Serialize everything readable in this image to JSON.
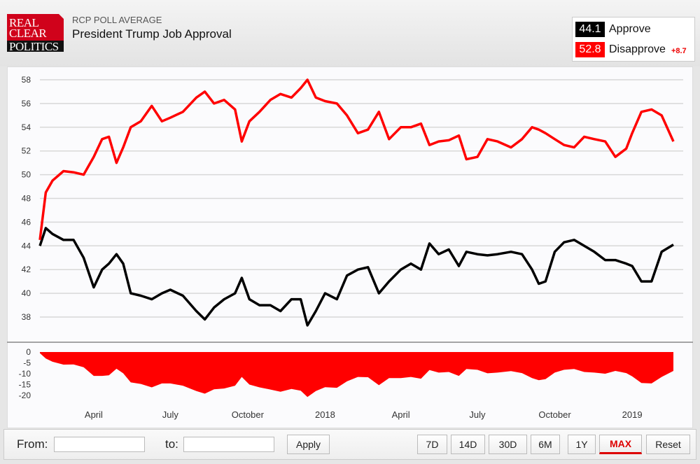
{
  "header": {
    "logo_text": "REAL CLEAR POLITICS",
    "subtitle": "RCP POLL AVERAGE",
    "title": "President Trump Job Approval"
  },
  "legend": {
    "approve": {
      "value": "44.1",
      "label": "Approve",
      "color": "#000000"
    },
    "disapprove": {
      "value": "52.8",
      "label": "Disapprove",
      "color": "#ff0000"
    },
    "spread": "+8.7"
  },
  "footer": {
    "from_label": "From:",
    "to_label": "to:",
    "from_value": "",
    "to_value": "",
    "apply": "Apply",
    "ranges": [
      "7D",
      "14D",
      "30D",
      "6M",
      "1Y",
      "MAX"
    ],
    "active_range": "MAX",
    "reset": "Reset"
  },
  "chart_data": {
    "type": "line",
    "ylim": [
      37,
      58.5
    ],
    "yticks": [
      38,
      40,
      42,
      44,
      46,
      48,
      50,
      52,
      54,
      56,
      58
    ],
    "spread_ylim": [
      -21,
      0
    ],
    "spread_ticks": [
      0,
      -5,
      -10,
      -15,
      -20
    ],
    "grid": true,
    "xticks": [
      {
        "date": "2017-04-01",
        "label": "April"
      },
      {
        "date": "2017-07-01",
        "label": "July"
      },
      {
        "date": "2017-10-01",
        "label": "October"
      },
      {
        "date": "2018-01-01",
        "label": "2018"
      },
      {
        "date": "2018-04-01",
        "label": "April"
      },
      {
        "date": "2018-07-01",
        "label": "July"
      },
      {
        "date": "2018-10-01",
        "label": "October"
      },
      {
        "date": "2019-01-01",
        "label": "2019"
      }
    ],
    "x": [
      "2017-01-27",
      "2017-02-03",
      "2017-02-11",
      "2017-02-24",
      "2017-03-08",
      "2017-03-20",
      "2017-04-01",
      "2017-04-11",
      "2017-04-19",
      "2017-04-28",
      "2017-05-06",
      "2017-05-15",
      "2017-05-27",
      "2017-06-09",
      "2017-06-21",
      "2017-07-01",
      "2017-07-16",
      "2017-08-01",
      "2017-08-11",
      "2017-08-22",
      "2017-09-03",
      "2017-09-16",
      "2017-09-24",
      "2017-10-03",
      "2017-10-15",
      "2017-10-28",
      "2017-11-09",
      "2017-11-22",
      "2017-12-03",
      "2017-12-11",
      "2017-12-21",
      "2018-01-01",
      "2018-01-15",
      "2018-01-27",
      "2018-02-09",
      "2018-02-21",
      "2018-03-06",
      "2018-03-18",
      "2018-04-01",
      "2018-04-13",
      "2018-04-25",
      "2018-05-05",
      "2018-05-16",
      "2018-05-28",
      "2018-06-09",
      "2018-06-18",
      "2018-07-01",
      "2018-07-13",
      "2018-07-25",
      "2018-08-10",
      "2018-08-23",
      "2018-09-04",
      "2018-09-12",
      "2018-09-20",
      "2018-10-01",
      "2018-10-12",
      "2018-10-24",
      "2018-11-05",
      "2018-11-17",
      "2018-11-30",
      "2018-12-12",
      "2018-12-25",
      "2019-01-01",
      "2019-01-12",
      "2019-01-24",
      "2019-02-05",
      "2019-02-19"
    ],
    "series": [
      {
        "name": "Approve",
        "color": "#000000",
        "values": [
          44,
          45.5,
          45,
          44.5,
          44.5,
          43,
          40.5,
          42,
          42.5,
          43.3,
          42.5,
          40,
          39.8,
          39.5,
          40,
          40.3,
          39.8,
          38.5,
          37.8,
          38.8,
          39.5,
          40,
          41.3,
          39.5,
          39,
          39,
          38.5,
          39.5,
          39.5,
          37.3,
          38.5,
          40,
          39.5,
          41.5,
          42,
          42.2,
          40,
          41,
          42,
          42.5,
          42,
          44.2,
          43.3,
          43.7,
          42.3,
          43.5,
          43.3,
          43.2,
          43.3,
          43.5,
          43.3,
          42,
          40.8,
          41,
          43.5,
          44.3,
          44.5,
          44,
          43.5,
          42.8,
          42.8,
          42.5,
          42.3,
          41,
          41,
          43.5,
          44.1
        ]
      },
      {
        "name": "Disapprove",
        "color": "#ff0000",
        "values": [
          44.5,
          48.5,
          49.5,
          50.3,
          50.2,
          50,
          51.5,
          53,
          53.2,
          51,
          52.3,
          54,
          54.5,
          55.8,
          54.5,
          54.8,
          55.3,
          56.5,
          57,
          56,
          56.3,
          55.5,
          52.8,
          54.5,
          55.3,
          56.3,
          56.8,
          56.5,
          57.3,
          58,
          56.5,
          56.2,
          56,
          55,
          53.5,
          53.8,
          55.3,
          53,
          54,
          54,
          54.3,
          52.5,
          52.8,
          52.9,
          53.3,
          51.3,
          51.5,
          53,
          52.8,
          52.3,
          53,
          54,
          53.8,
          53.5,
          53,
          52.5,
          52.3,
          53.2,
          53,
          52.8,
          51.5,
          52.2,
          53.5,
          55.3,
          55.5,
          55,
          52.8
        ]
      }
    ]
  }
}
